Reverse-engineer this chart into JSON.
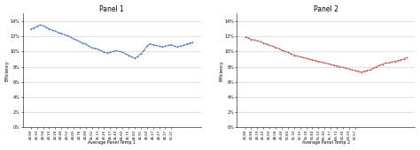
{
  "panel1": {
    "title": "Panel 1",
    "xlabel": "Average Panel Temp 1",
    "ylabel": "Efficiency",
    "color": "#4472C4",
    "x_labels": [
      "43.80",
      "43.93",
      "44.04",
      "44.15",
      "44.26",
      "44.40",
      "44.52",
      "44.65",
      "44.76",
      "44.89",
      "45.02",
      "45.13",
      "45.26",
      "45.37",
      "45.40",
      "45.60",
      "45.75",
      "45.82",
      "45.91",
      "46.02",
      "46.17",
      "46.27",
      "46.37",
      "52.21"
    ],
    "y_values": [
      0.13,
      0.131,
      0.133,
      0.135,
      0.134,
      0.132,
      0.13,
      0.128,
      0.127,
      0.125,
      0.124,
      0.122,
      0.121,
      0.119,
      0.117,
      0.115,
      0.113,
      0.111,
      0.11,
      0.107,
      0.105,
      0.104,
      0.103,
      0.101,
      0.099,
      0.098,
      0.099,
      0.1,
      0.101,
      0.1,
      0.099,
      0.097,
      0.095,
      0.093,
      0.091,
      0.093,
      0.097,
      0.101,
      0.107,
      0.11,
      0.109,
      0.108,
      0.107,
      0.106,
      0.107,
      0.108,
      0.109,
      0.107,
      0.106,
      0.107,
      0.108,
      0.11,
      0.111,
      0.112
    ],
    "ylim": [
      0,
      0.15
    ],
    "yticks": [
      0.0,
      0.02,
      0.04,
      0.06,
      0.08,
      0.1,
      0.12,
      0.14
    ]
  },
  "panel2": {
    "title": "Panel 2",
    "xlabel": "Average Panel Temp 2",
    "ylabel": "Efficiency",
    "color": "#C0504D",
    "x_labels": [
      "43.80",
      "43.80",
      "44.10",
      "45.20",
      "45.00",
      "48.00",
      "49.40",
      "50.80",
      "51.10",
      "52.10",
      "54.30",
      "54.80",
      "56.10",
      "55.30",
      "55.77",
      "54.73",
      "54.30",
      "54.20",
      "52.57"
    ],
    "y_values": [
      0.119,
      0.118,
      0.116,
      0.115,
      0.114,
      0.113,
      0.111,
      0.11,
      0.108,
      0.107,
      0.105,
      0.104,
      0.102,
      0.1,
      0.099,
      0.097,
      0.095,
      0.094,
      0.093,
      0.092,
      0.091,
      0.09,
      0.089,
      0.088,
      0.087,
      0.086,
      0.085,
      0.084,
      0.083,
      0.082,
      0.081,
      0.08,
      0.079,
      0.078,
      0.077,
      0.076,
      0.075,
      0.074,
      0.073,
      0.074,
      0.075,
      0.076,
      0.078,
      0.08,
      0.082,
      0.083,
      0.085,
      0.085,
      0.086,
      0.087,
      0.088,
      0.089,
      0.09,
      0.092
    ],
    "ylim": [
      0,
      0.15
    ],
    "yticks": [
      0.0,
      0.02,
      0.04,
      0.06,
      0.08,
      0.1,
      0.12,
      0.14
    ]
  },
  "background_color": "#ffffff",
  "grid_color": "#c8c8c8",
  "figsize": [
    4.74,
    1.7
  ],
  "dpi": 100
}
